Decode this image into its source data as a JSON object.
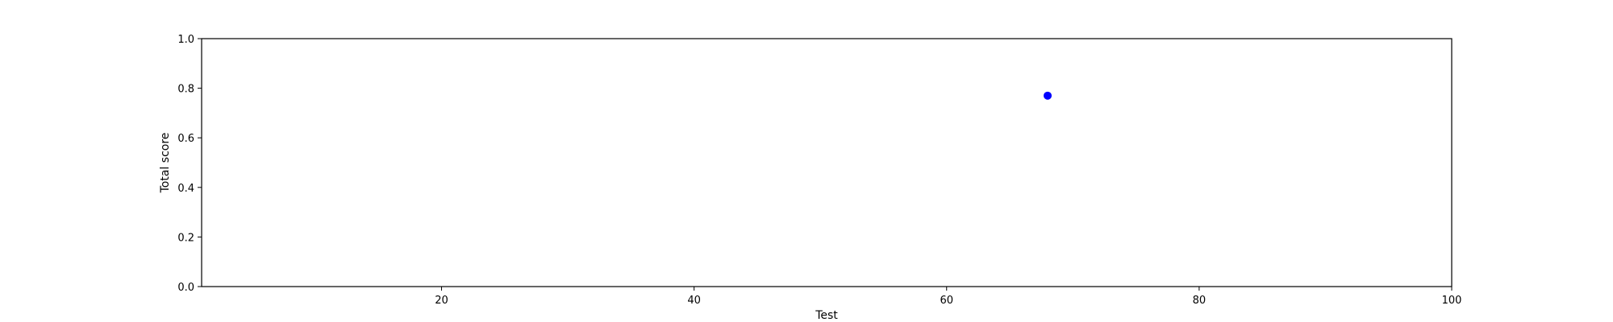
{
  "chart_data": {
    "type": "scatter",
    "title": "",
    "xlabel": "Test",
    "ylabel": "Total score",
    "xlim": [
      1,
      100
    ],
    "ylim": [
      0,
      1
    ],
    "xticks": [
      20,
      40,
      60,
      80,
      100
    ],
    "yticks": [
      0.0,
      0.2,
      0.4,
      0.6,
      0.8,
      1.0
    ],
    "grid": false,
    "legend": false,
    "series": [
      {
        "color": "#0000ff",
        "points": [
          {
            "x": 68,
            "y": 0.77
          }
        ]
      }
    ]
  }
}
